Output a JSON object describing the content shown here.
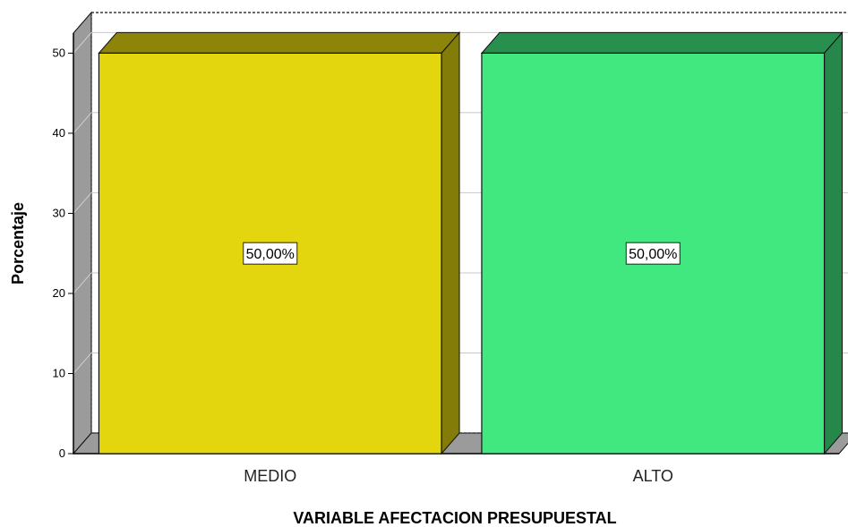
{
  "chart_data": {
    "type": "bar",
    "categories": [
      "MEDIO",
      "ALTO"
    ],
    "values": [
      50,
      50
    ],
    "data_labels": [
      "50,00%",
      "50,00%"
    ],
    "colors": [
      "#E3D60F",
      "#41E87F"
    ],
    "xlabel": "VARIABLE AFECTACION PRESUPUESTAL",
    "ylabel": "Porcentaje",
    "ylim": [
      0,
      52.5
    ],
    "yticks": [
      0,
      10,
      20,
      30,
      40,
      50
    ],
    "grid": true,
    "style": "3d"
  }
}
